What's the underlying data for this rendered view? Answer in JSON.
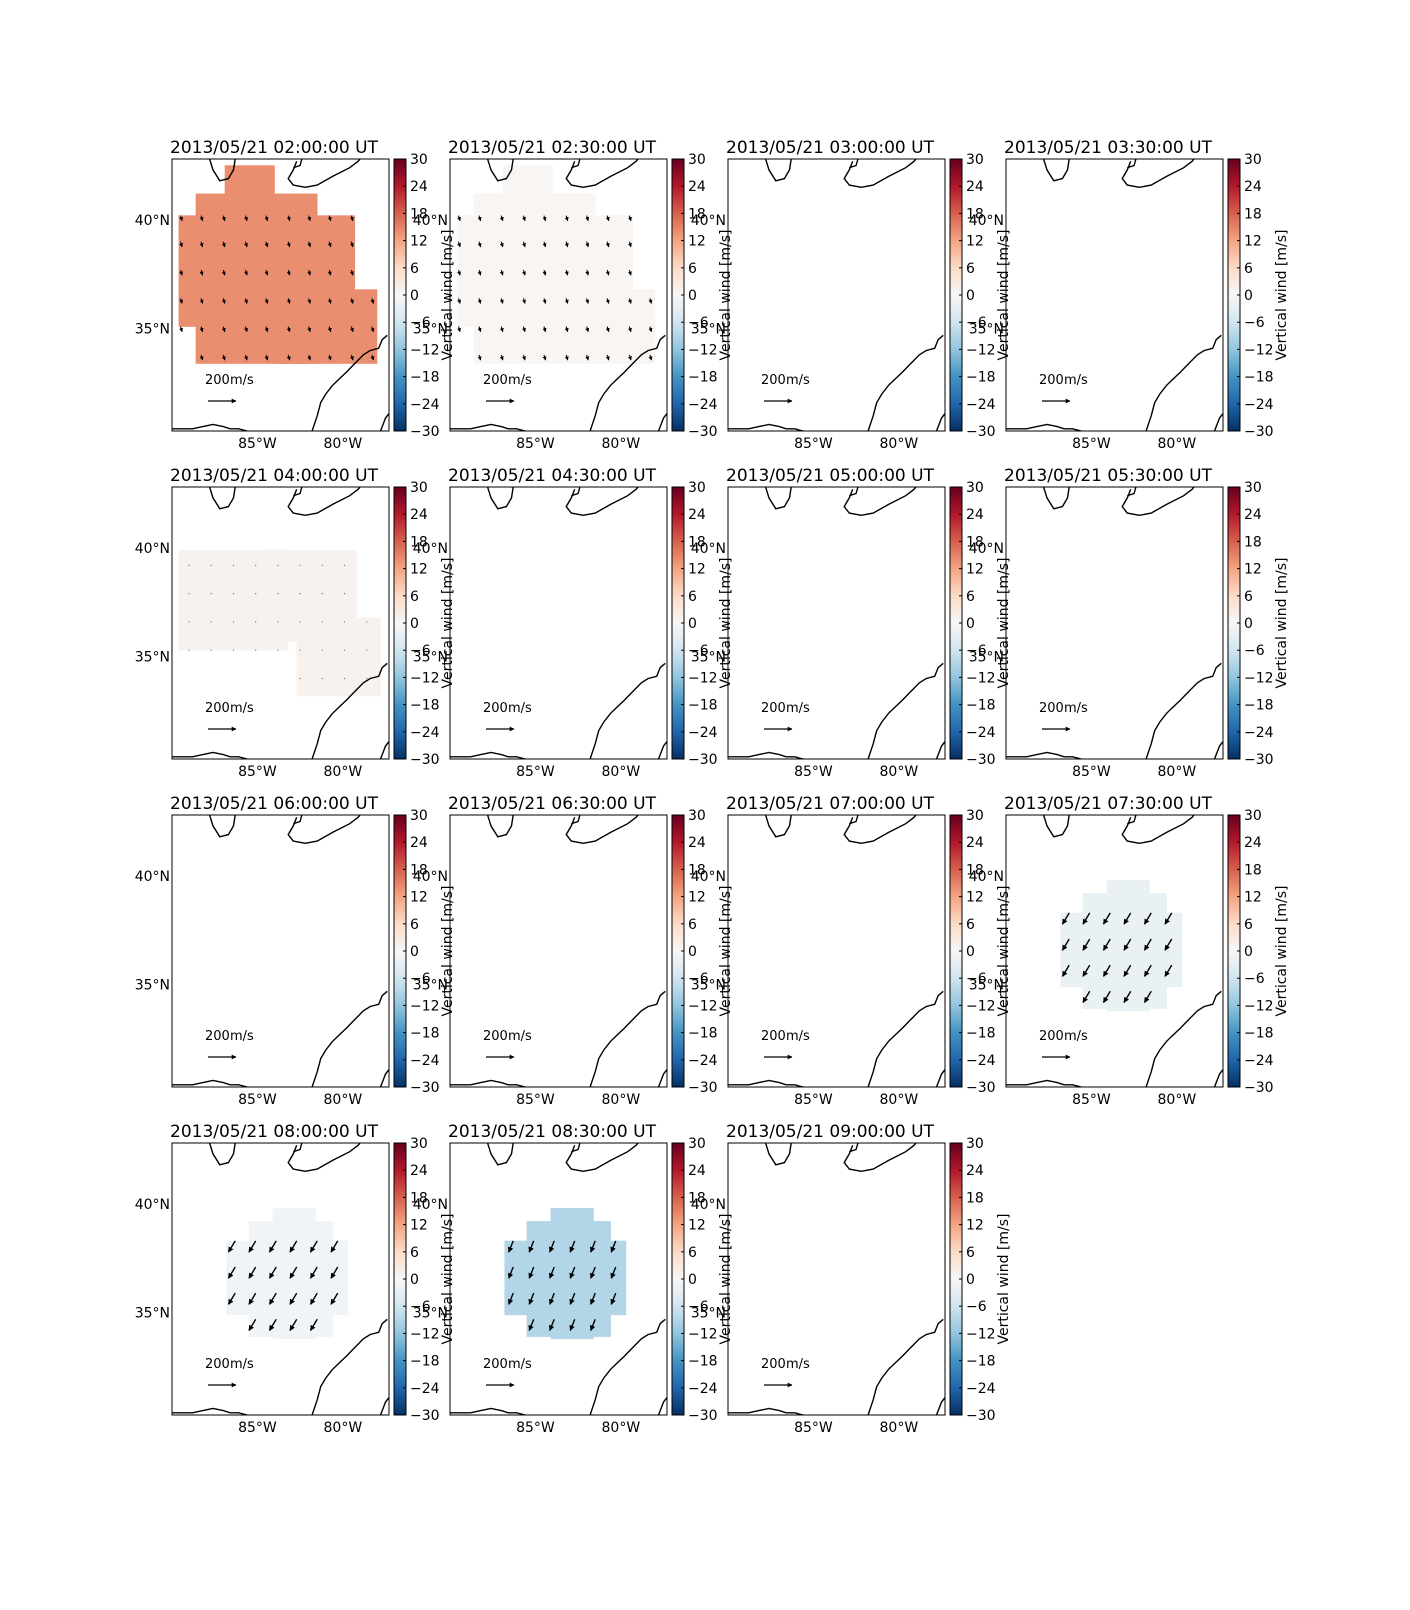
{
  "chart_data": {
    "type": "heatmap",
    "layout": {
      "rows": 4,
      "cols": 4
    },
    "map": {
      "lon_range": [
        -90,
        -77.3
      ],
      "lat_range": [
        30.3,
        42.8
      ],
      "lon_ticks": [
        {
          "value": -85,
          "label": "85°W"
        },
        {
          "value": -80,
          "label": "80°W"
        }
      ],
      "lat_ticks": [
        {
          "value": 40,
          "label": "40°N"
        },
        {
          "value": 35,
          "label": "35°N"
        }
      ]
    },
    "colorbar": {
      "label": "Vertical wind [m/s]",
      "range": [
        -30,
        30
      ],
      "ticks": [
        30,
        24,
        18,
        12,
        6,
        0,
        -6,
        -12,
        -18,
        -24,
        -30
      ],
      "tick_labels": [
        "30",
        "24",
        "18",
        "12",
        "6",
        "0",
        "−6",
        "−12",
        "−18",
        "−24",
        "−30"
      ],
      "colormap": [
        "#053061",
        "#2166ac",
        "#4393c3",
        "#92c5de",
        "#d1e5f0",
        "#f7f7f7",
        "#fddbc7",
        "#f4a582",
        "#d6604d",
        "#b2182b",
        "#67001f"
      ]
    },
    "quiver_key": {
      "value": 200,
      "label": "200 m/s",
      "unit_text": "m/s"
    },
    "panels": [
      {
        "title": "2013/05/21 02:00:00 UT",
        "vertical_wind": 14,
        "region": "large",
        "arrow_u": 20,
        "arrow_v": -70
      },
      {
        "title": "2013/05/21 02:30:00 UT",
        "vertical_wind": 0.5,
        "region": "large",
        "arrow_u": 20,
        "arrow_v": -70
      },
      {
        "title": "2013/05/21 03:00:00 UT",
        "vertical_wind": null,
        "region": "none"
      },
      {
        "title": "2013/05/21 03:30:00 UT",
        "vertical_wind": null,
        "region": "none"
      },
      {
        "title": "2013/05/21 04:00:00 UT",
        "vertical_wind": 1,
        "region": "medium",
        "arrow_u": 0,
        "arrow_v": -5
      },
      {
        "title": "2013/05/21 04:30:00 UT",
        "vertical_wind": null,
        "region": "none"
      },
      {
        "title": "2013/05/21 05:00:00 UT",
        "vertical_wind": null,
        "region": "none"
      },
      {
        "title": "2013/05/21 05:30:00 UT",
        "vertical_wind": null,
        "region": "none"
      },
      {
        "title": "2013/05/21 06:00:00 UT",
        "vertical_wind": null,
        "region": "none"
      },
      {
        "title": "2013/05/21 06:30:00 UT",
        "vertical_wind": null,
        "region": "none"
      },
      {
        "title": "2013/05/21 07:00:00 UT",
        "vertical_wind": null,
        "region": "none"
      },
      {
        "title": "2013/05/21 07:30:00 UT",
        "vertical_wind": -2,
        "region": "small",
        "arrow_u": -90,
        "arrow_v": -150
      },
      {
        "title": "2013/05/21 08:00:00 UT",
        "vertical_wind": -1,
        "region": "small",
        "arrow_u": -90,
        "arrow_v": -150
      },
      {
        "title": "2013/05/21 08:30:00 UT",
        "vertical_wind": -9,
        "region": "small",
        "arrow_u": -60,
        "arrow_v": -150
      },
      {
        "title": "2013/05/21 09:00:00 UT",
        "vertical_wind": null,
        "region": "none"
      }
    ],
    "colorbar_label_shown_in_columns": [
      3
    ],
    "colorbar_label_shown_in_panels": [
      14
    ]
  }
}
